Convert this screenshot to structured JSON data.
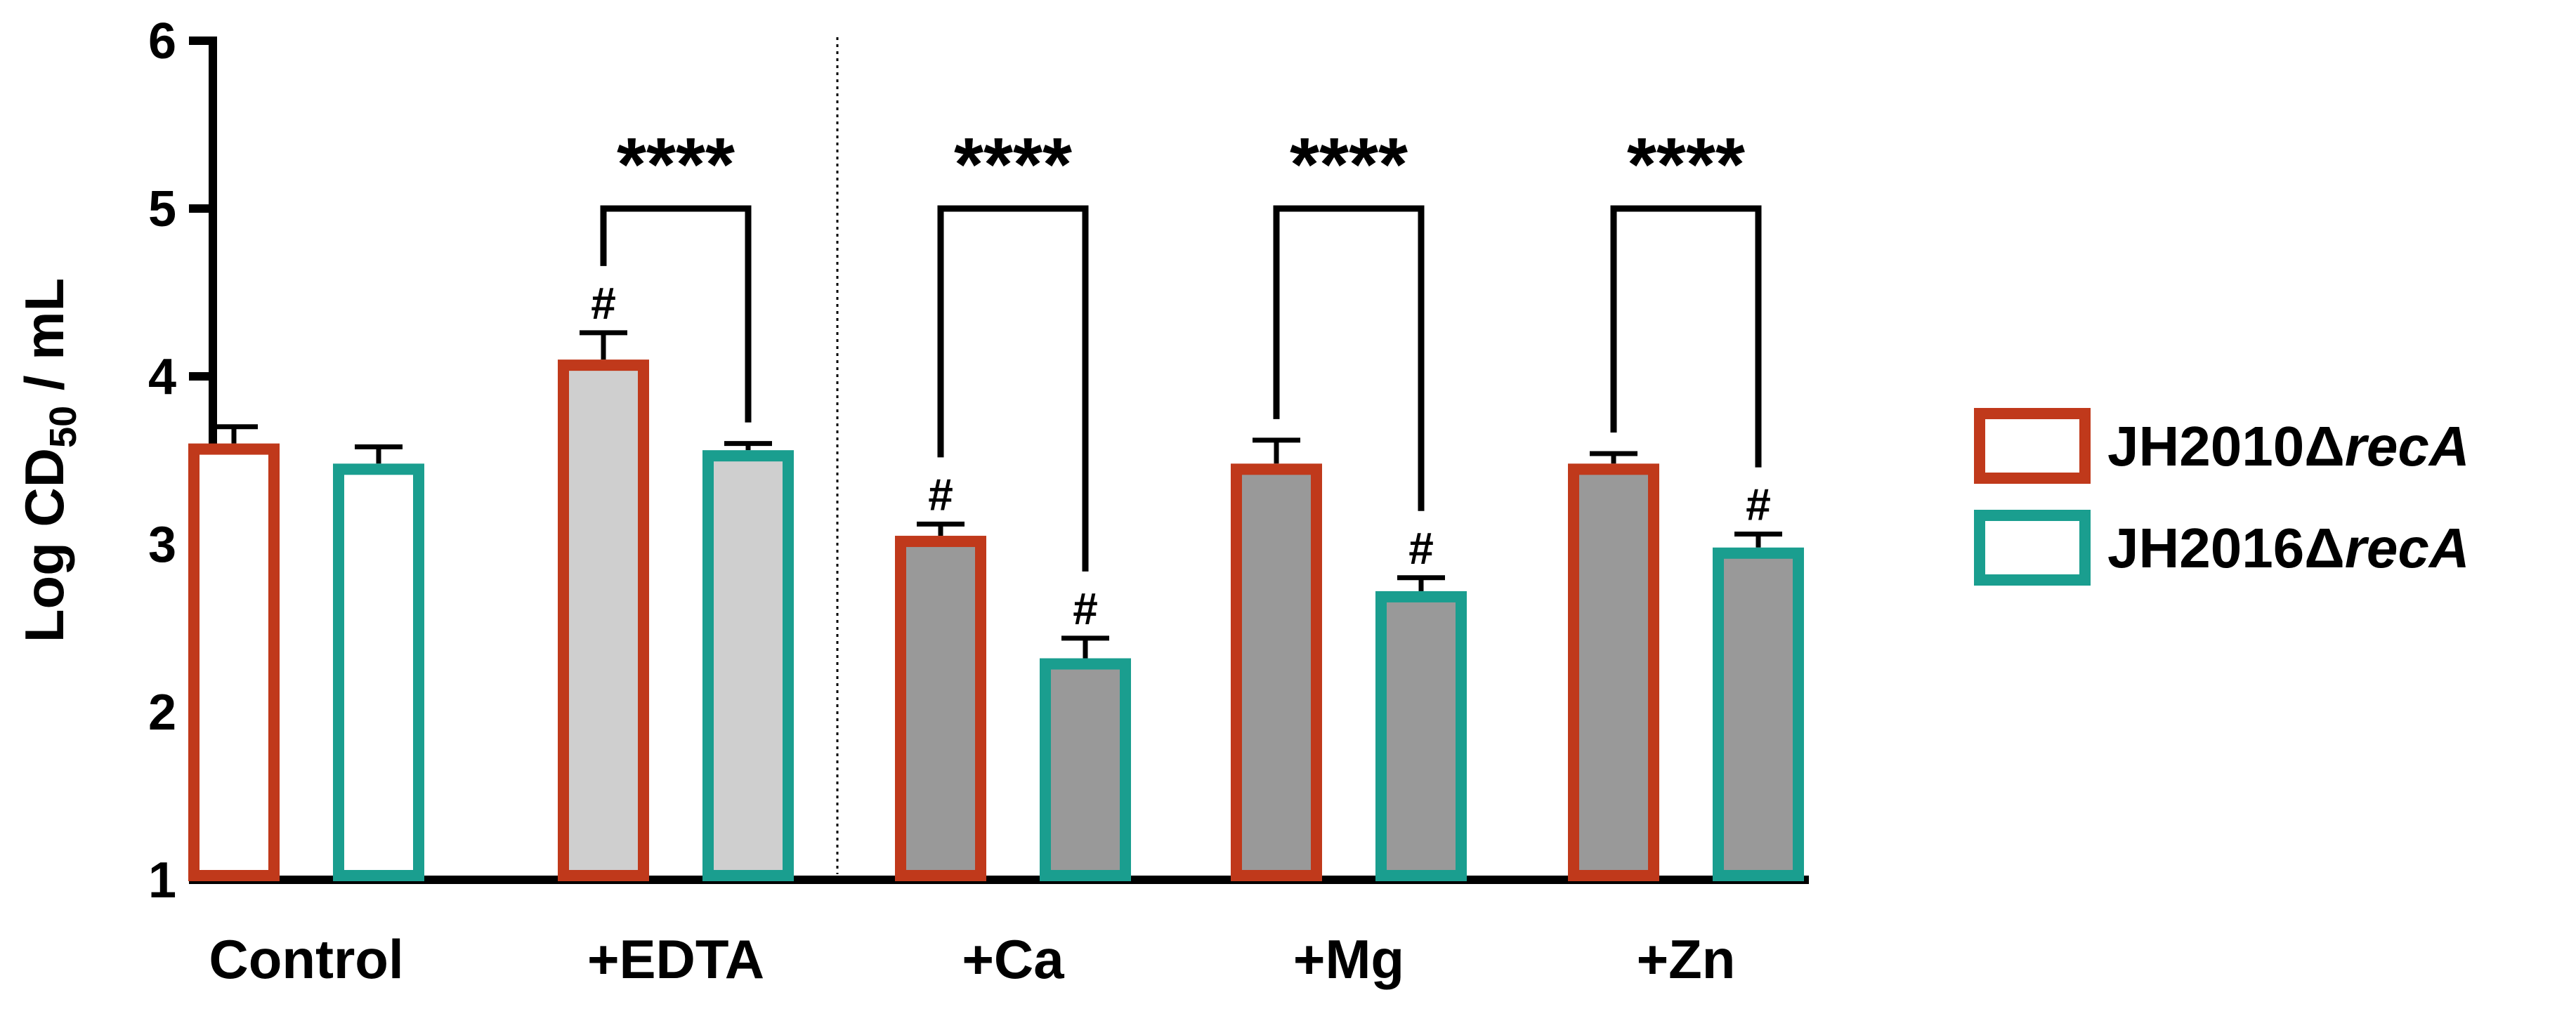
{
  "chart_data": {
    "type": "bar",
    "title": "",
    "xlabel": "",
    "ylabel": {
      "prefix": "Log CD",
      "subscript": "50",
      "suffix": " / mL"
    },
    "ylim": [
      1,
      6
    ],
    "yticks": [
      "1",
      "2",
      "3",
      "4",
      "5",
      "6"
    ],
    "categories": [
      "Control",
      "+EDTA",
      "+Ca",
      "+Mg",
      "+Zn"
    ],
    "category_fills": [
      "#ffffff",
      "#cfcfcf",
      "#999999",
      "#999999",
      "#999999"
    ],
    "series": [
      {
        "name_prefix": "JH2010Δ",
        "name_italic": "recA",
        "color": "#c0391b",
        "values": [
          3.6,
          4.1,
          3.05,
          3.48,
          3.48
        ],
        "errors": [
          0.1,
          0.16,
          0.07,
          0.14,
          0.06
        ],
        "marks": [
          "",
          "#",
          "#",
          "",
          ""
        ]
      },
      {
        "name_prefix": "JH2016Δ",
        "name_italic": "recA",
        "color": "#1a9e8f",
        "values": [
          3.48,
          3.56,
          2.32,
          2.72,
          2.98
        ],
        "errors": [
          0.1,
          0.04,
          0.12,
          0.08,
          0.08
        ],
        "marks": [
          "",
          "",
          "#",
          "#",
          "#"
        ]
      }
    ],
    "significance": [
      {
        "category": 1,
        "label": "****",
        "bracket_y": 5.0
      },
      {
        "category": 2,
        "label": "****",
        "bracket_y": 5.0
      },
      {
        "category": 3,
        "label": "****",
        "bracket_y": 5.0
      },
      {
        "category": 4,
        "label": "****",
        "bracket_y": 5.0
      }
    ],
    "divider_after_category": 1,
    "legend_position": "right"
  }
}
